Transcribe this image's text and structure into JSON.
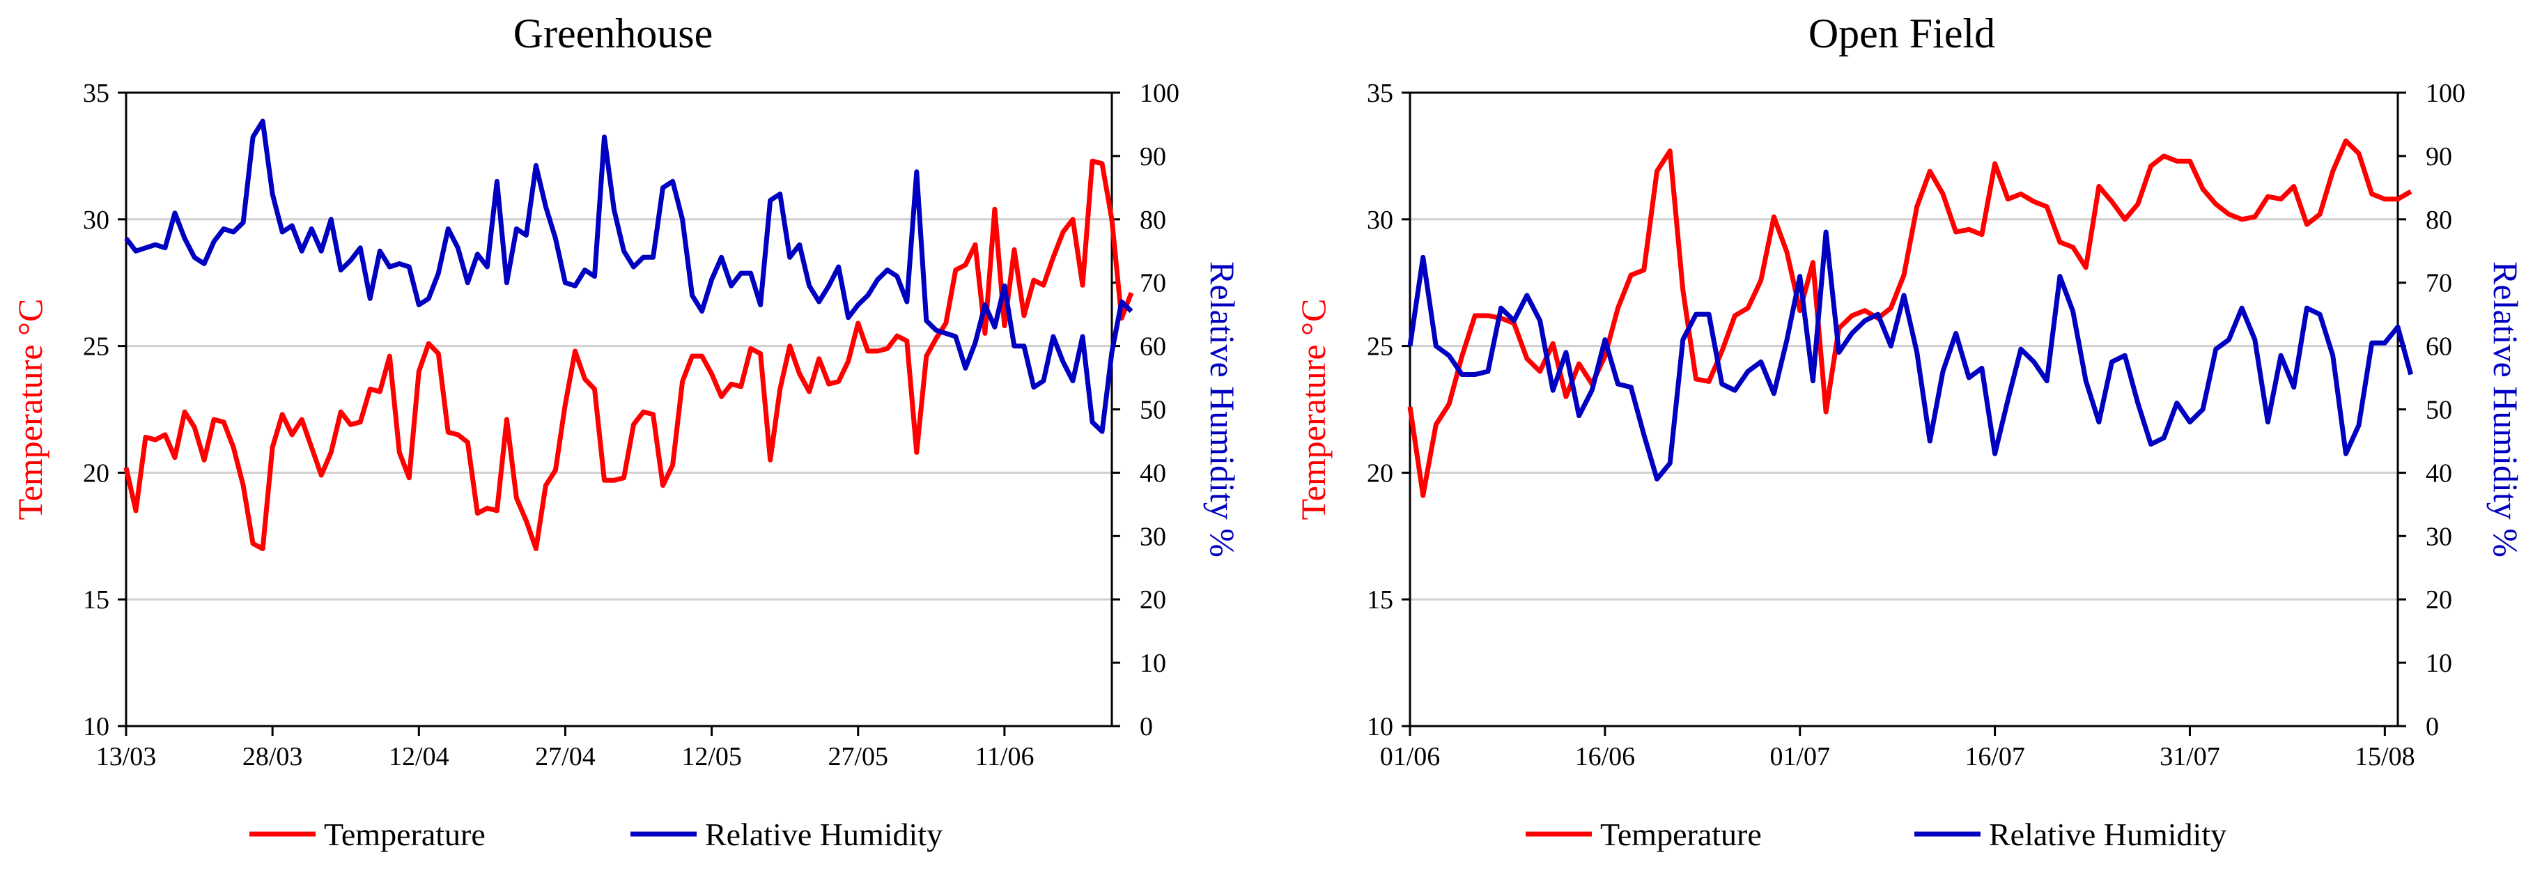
{
  "colors": {
    "temperature": "#ff0000",
    "humidity": "#0000c0",
    "grid": "#d0d0d0"
  },
  "chart_data": [
    {
      "type": "line",
      "title": "Greenhouse",
      "ylabel_left": "Temperature °C",
      "ylabel_right": "Relative Humidity %",
      "ylim_left": [
        10,
        35
      ],
      "ylim_right": [
        0,
        100
      ],
      "yticks_left": [
        "10",
        "15",
        "20",
        "25",
        "30",
        "35"
      ],
      "yticks_right": [
        "0",
        "10",
        "20",
        "30",
        "40",
        "50",
        "60",
        "70",
        "80",
        "90",
        "100"
      ],
      "xlim": [
        0,
        101
      ],
      "xtick_labels": [
        "13/03",
        "28/03",
        "12/04",
        "27/04",
        "12/05",
        "27/05",
        "11/06"
      ],
      "xtick_positions": [
        0,
        15,
        30,
        45,
        60,
        75,
        90
      ],
      "legend": [
        "Temperature",
        "Relative Humidity"
      ],
      "series": [
        {
          "name": "Temperature",
          "axis": "left",
          "values": [
            20.2,
            18.5,
            21.4,
            21.3,
            21.5,
            20.6,
            22.4,
            21.8,
            20.5,
            22.1,
            22.0,
            21.0,
            19.5,
            17.2,
            17.0,
            21.0,
            22.3,
            21.5,
            22.1,
            21.0,
            19.9,
            20.8,
            22.4,
            21.9,
            22.0,
            23.3,
            23.2,
            24.6,
            20.8,
            19.8,
            24.0,
            25.1,
            24.7,
            21.6,
            21.5,
            21.2,
            18.4,
            18.6,
            18.5,
            22.1,
            19.0,
            18.1,
            17.0,
            19.5,
            20.1,
            22.7,
            24.8,
            23.7,
            23.3,
            19.7,
            19.7,
            19.8,
            21.9,
            22.4,
            22.3,
            19.5,
            20.3,
            23.6,
            24.6,
            24.6,
            23.9,
            23.0,
            23.5,
            23.4,
            24.9,
            24.7,
            20.5,
            23.3,
            25.0,
            23.9,
            23.2,
            24.5,
            23.5,
            23.6,
            24.4,
            25.9,
            24.8,
            24.8,
            24.9,
            25.4,
            25.2,
            20.8,
            24.6,
            25.3,
            25.9,
            28.0,
            28.2,
            29.0,
            25.5,
            30.4,
            25.8,
            28.8,
            26.2,
            27.6,
            27.4,
            28.5,
            29.5,
            30.0,
            27.4,
            32.3,
            32.2,
            30.0,
            26.1,
            27.1
          ]
        },
        {
          "name": "Relative Humidity",
          "axis": "right",
          "values": [
            77,
            75,
            75.5,
            76,
            75.5,
            81,
            77,
            74,
            73,
            76.5,
            78.5,
            78,
            79.5,
            93,
            95.5,
            84,
            78,
            79,
            75,
            78.5,
            75,
            80,
            72,
            73.5,
            75.5,
            67.5,
            75,
            72.5,
            73,
            72.5,
            66.5,
            67.5,
            71.5,
            78.5,
            75.5,
            70,
            74.5,
            72.5,
            86,
            70,
            78.5,
            77.5,
            88.5,
            82,
            77,
            70,
            69.5,
            72,
            71,
            93,
            81.5,
            75,
            72.5,
            74,
            74,
            85,
            86,
            80,
            68,
            65.5,
            70.5,
            74,
            69.5,
            71.5,
            71.5,
            66.5,
            83,
            84,
            74,
            76,
            69.5,
            67,
            69.5,
            72.5,
            64.5,
            66.5,
            68,
            70.5,
            72,
            71,
            67,
            87.5,
            64,
            62.5,
            62,
            61.5,
            56.5,
            60.5,
            66.5,
            63,
            69.5,
            60,
            60,
            53.5,
            54.5,
            61.5,
            57.5,
            54.5,
            61.5,
            48,
            46.5,
            59,
            67,
            65.5
          ]
        }
      ]
    },
    {
      "type": "line",
      "title": "Open Field",
      "ylabel_left": "Temperature °C",
      "ylabel_right": "Relative Humidity %",
      "ylim_left": [
        10,
        35
      ],
      "ylim_right": [
        0,
        100
      ],
      "yticks_left": [
        "10",
        "15",
        "20",
        "25",
        "30",
        "35"
      ],
      "yticks_right": [
        "0",
        "10",
        "20",
        "30",
        "40",
        "50",
        "60",
        "70",
        "80",
        "90",
        "100"
      ],
      "xlim": [
        0,
        76
      ],
      "xtick_labels": [
        "01/06",
        "16/06",
        "01/07",
        "16/07",
        "31/07",
        "15/08"
      ],
      "xtick_positions": [
        0,
        15,
        30,
        45,
        60,
        75
      ],
      "legend": [
        "Temperature",
        "Relative Humidity"
      ],
      "series": [
        {
          "name": "Temperature",
          "axis": "left",
          "values": [
            22.6,
            19.1,
            21.9,
            22.7,
            24.6,
            26.2,
            26.2,
            26.1,
            25.9,
            24.5,
            24.0,
            25.1,
            23.0,
            24.3,
            23.5,
            24.6,
            26.5,
            27.8,
            28.0,
            31.9,
            32.7,
            27.2,
            23.7,
            23.6,
            24.8,
            26.2,
            26.5,
            27.6,
            30.1,
            28.7,
            26.4,
            28.3,
            22.4,
            25.7,
            26.2,
            26.4,
            26.1,
            26.5,
            27.8,
            30.5,
            31.9,
            31.0,
            29.5,
            29.6,
            29.4,
            32.2,
            30.8,
            31.0,
            30.7,
            30.5,
            29.1,
            28.9,
            28.1,
            31.3,
            30.7,
            30.0,
            30.6,
            32.1,
            32.5,
            32.3,
            32.3,
            31.2,
            30.6,
            30.2,
            30.0,
            30.1,
            30.9,
            30.8,
            31.3,
            29.8,
            30.2,
            31.9,
            33.1,
            32.6,
            31.0,
            30.8,
            30.8,
            31.1
          ]
        },
        {
          "name": "Relative Humidity",
          "axis": "right",
          "values": [
            60,
            74,
            60,
            58.5,
            55.5,
            55.5,
            56,
            66,
            64,
            68,
            64,
            53,
            59,
            49,
            53,
            61,
            54,
            53.5,
            46,
            39,
            41.5,
            61,
            65,
            65,
            54,
            53,
            56,
            57.5,
            52.5,
            61,
            71,
            54.5,
            78,
            59,
            62,
            64,
            65,
            60,
            68,
            59,
            45,
            56,
            62,
            55,
            56.5,
            43,
            51.5,
            59.5,
            57.5,
            54.5,
            71,
            65.5,
            54.5,
            48,
            57.5,
            58.5,
            51,
            44.5,
            45.5,
            51,
            48,
            50,
            59.5,
            61,
            66,
            61,
            48,
            58.5,
            53.5,
            66,
            65,
            58.5,
            43,
            47.5,
            60.5,
            60.5,
            63,
            55.5
          ]
        }
      ]
    }
  ]
}
